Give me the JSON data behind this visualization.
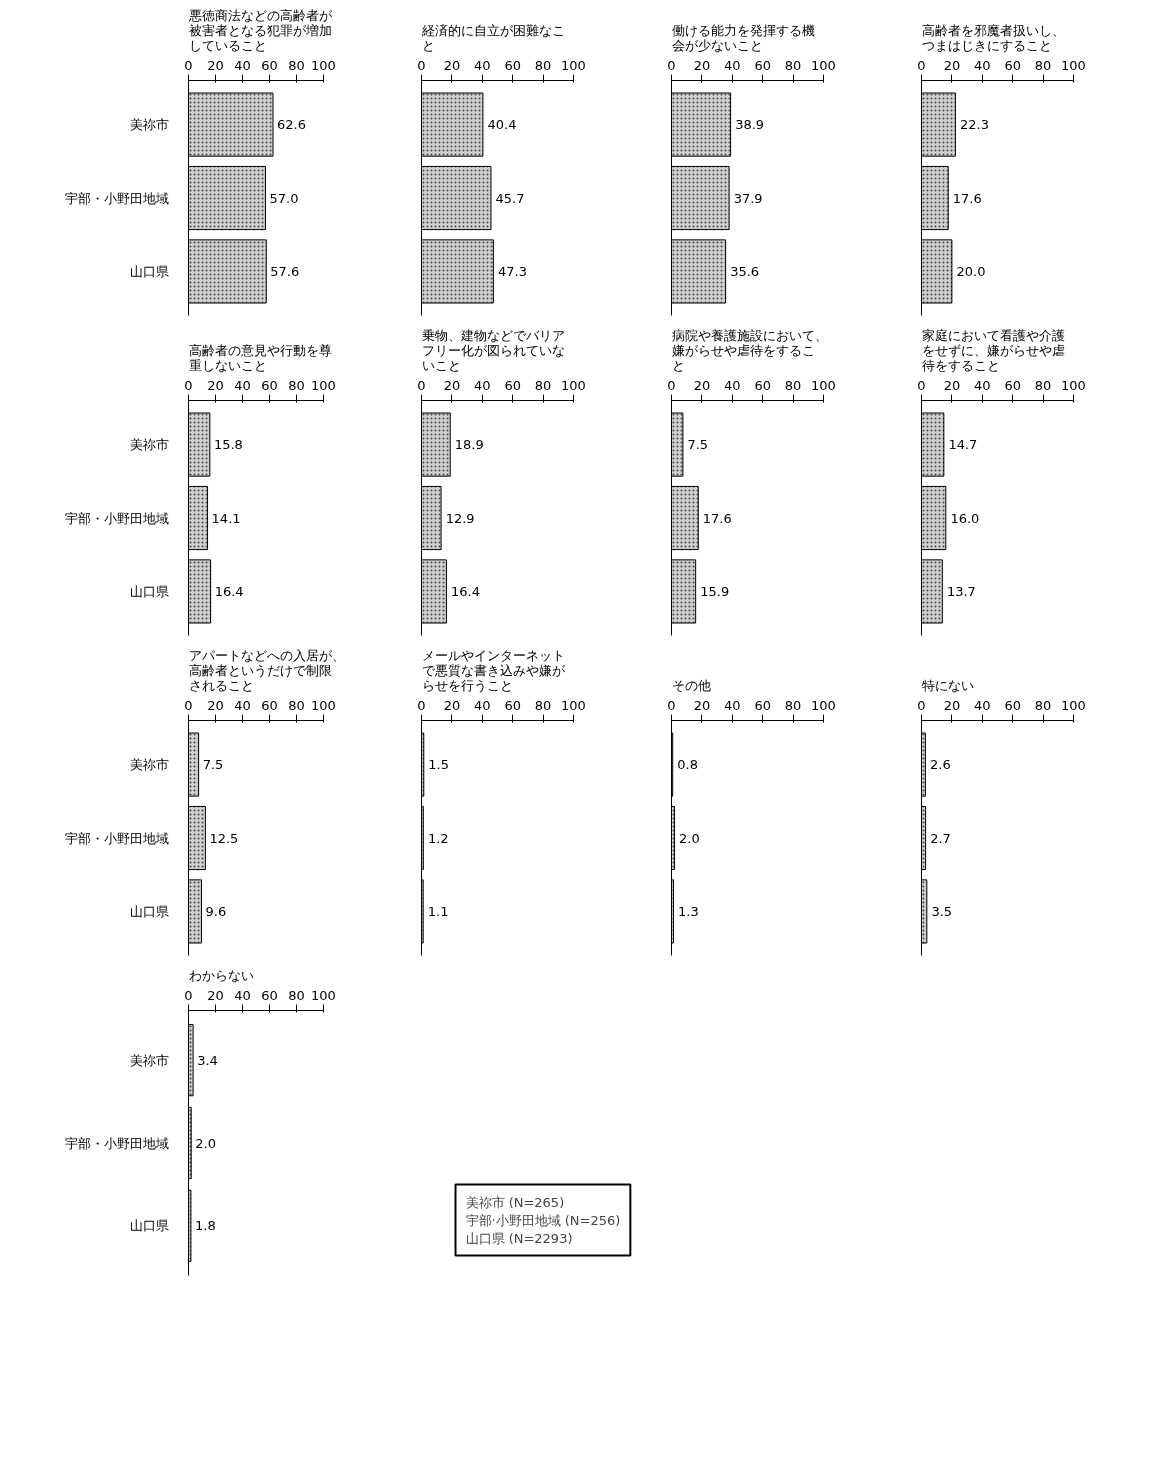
{
  "chart_data": [
    {
      "type": "bar",
      "orientation": "horizontal",
      "title": "悪徳商法などの高齢者が被害者となる犯罪が増加していること",
      "categories": [
        "美祢市",
        "宇部・小野田地域",
        "山口県"
      ],
      "values": [
        62.6,
        57.0,
        57.6
      ],
      "value_labels": [
        "62.6",
        "57.0",
        "57.6"
      ],
      "color": "#d0d0d0",
      "xlim": [
        0,
        100
      ],
      "xticks": [
        0,
        20,
        40,
        60,
        80,
        100
      ],
      "grid": false
    },
    {
      "type": "bar",
      "orientation": "horizontal",
      "title": "経済的に自立が困難なこと",
      "categories": [
        "美祢市",
        "宇部・小野田地域",
        "山口県"
      ],
      "values": [
        40.4,
        45.7,
        47.3
      ],
      "value_labels": [
        "40.4",
        "45.7",
        "47.3"
      ],
      "color": "#d0d0d0",
      "xlim": [
        0,
        100
      ],
      "xticks": [
        0,
        20,
        40,
        60,
        80,
        100
      ],
      "tick_labels": "x",
      "grid": false
    },
    {
      "type": "bar",
      "orientation": "horizontal",
      "title": "働ける能力を発揮する機会が少ないこと",
      "categories": [
        "美祢市",
        "宇部・小野田地域",
        "山口県"
      ],
      "values": [
        38.9,
        37.9,
        35.6
      ],
      "value_labels": [
        "38.9",
        "37.9",
        "35.6"
      ],
      "color": "#d0d0d0",
      "xlim": [
        0,
        100
      ],
      "xticks": [
        0,
        20,
        40,
        60,
        80,
        100
      ],
      "tick_labels": "x",
      "grid": false
    },
    {
      "type": "bar",
      "orientation": "horizontal",
      "title": "高齢者を邪魔者扱いし、つまはじきにすること",
      "categories": [
        "美祢市",
        "宇部・小野田地域",
        "山口県"
      ],
      "values": [
        22.3,
        17.6,
        20.0
      ],
      "value_labels": [
        "22.3",
        "17.6",
        "20.0"
      ],
      "color": "#d0d0d0",
      "xlim": [
        0,
        100
      ],
      "xticks": [
        0,
        20,
        40,
        60,
        80,
        100
      ],
      "tick_labels": "x",
      "grid": false
    },
    {
      "type": "bar",
      "orientation": "horizontal",
      "title": "高齢者の意見や行動を尊重しないこと",
      "categories": [
        "美祢市",
        "宇部・小野田地域",
        "山口県"
      ],
      "values": [
        15.8,
        14.1,
        16.4
      ],
      "value_labels": [
        "15.8",
        "14.1",
        "16.4"
      ],
      "color": "#d0d0d0",
      "xlim": [
        0,
        100
      ],
      "xticks": [
        0,
        20,
        40,
        60,
        80,
        100
      ],
      "grid": false
    },
    {
      "type": "bar",
      "orientation": "horizontal",
      "title": "乗物、建物などでバリアフリー化が図られていないこと",
      "categories": [
        "美祢市",
        "宇部・小野田地域",
        "山口県"
      ],
      "values": [
        18.9,
        12.9,
        16.4
      ],
      "value_labels": [
        "18.9",
        "12.9",
        "16.4"
      ],
      "color": "#d0d0d0",
      "xlim": [
        0,
        100
      ],
      "xticks": [
        0,
        20,
        40,
        60,
        80,
        100
      ],
      "tick_labels": "x",
      "grid": false
    },
    {
      "type": "bar",
      "orientation": "horizontal",
      "title": "病院や養護施設において、嫌がらせや虐待をすること",
      "categories": [
        "美祢市",
        "宇部・小野田地域",
        "山口県"
      ],
      "values": [
        7.5,
        17.6,
        15.9
      ],
      "value_labels": [
        "7.5",
        "17.6",
        "15.9"
      ],
      "color": "#d0d0d0",
      "xlim": [
        0,
        100
      ],
      "xticks": [
        0,
        20,
        40,
        60,
        80,
        100
      ],
      "tick_labels": "x",
      "grid": false
    },
    {
      "type": "bar",
      "orientation": "horizontal",
      "title": "家庭において看護や介護をせずに、嫌がらせや虐待をすること",
      "categories": [
        "美祢市",
        "宇部・小野田地域",
        "山口県"
      ],
      "values": [
        14.7,
        16.0,
        13.7
      ],
      "value_labels": [
        "14.7",
        "16.0",
        "13.7"
      ],
      "color": "#d0d0d0",
      "xlim": [
        0,
        100
      ],
      "xticks": [
        0,
        20,
        40,
        60,
        80,
        100
      ],
      "tick_labels": "x",
      "grid": false
    },
    {
      "type": "bar",
      "orientation": "horizontal",
      "title": "アパートなどへの入居が、高齢者というだけで制限されること",
      "categories": [
        "美祢市",
        "宇部・小野田地域",
        "山口県"
      ],
      "values": [
        7.5,
        12.5,
        9.6
      ],
      "value_labels": [
        "7.5",
        "12.5",
        "9.6"
      ],
      "color": "#d0d0d0",
      "xlim": [
        0,
        100
      ],
      "xticks": [
        0,
        20,
        40,
        60,
        80,
        100
      ],
      "grid": false
    },
    {
      "type": "bar",
      "orientation": "horizontal",
      "title": "メールやインターネットで悪質な書き込みや嫌がらせを行うこと",
      "categories": [
        "美祢市",
        "宇部・小野田地域",
        "山口県"
      ],
      "values": [
        1.5,
        1.2,
        1.1
      ],
      "value_labels": [
        "1.5",
        "1.2",
        "1.1"
      ],
      "color": "#d0d0d0",
      "xlim": [
        0,
        100
      ],
      "xticks": [
        0,
        20,
        40,
        60,
        80,
        100
      ],
      "tick_labels": "x",
      "grid": false
    },
    {
      "type": "bar",
      "orientation": "horizontal",
      "title": "その他",
      "categories": [
        "美祢市",
        "宇部・小野田地域",
        "山口県"
      ],
      "values": [
        0.8,
        2.0,
        1.3
      ],
      "value_labels": [
        "0.8",
        "2.0",
        "1.3"
      ],
      "color": "#d0d0d0",
      "xlim": [
        0,
        100
      ],
      "xticks": [
        0,
        20,
        40,
        60,
        80,
        100
      ],
      "tick_labels": "x",
      "grid": false
    },
    {
      "type": "bar",
      "orientation": "horizontal",
      "title": "特にない",
      "categories": [
        "美祢市",
        "宇部・小野田地域",
        "山口県"
      ],
      "values": [
        2.6,
        2.7,
        3.5
      ],
      "value_labels": [
        "2.6",
        "2.7",
        "3.5"
      ],
      "color": "#d0d0d0",
      "xlim": [
        0,
        100
      ],
      "xticks": [
        0,
        20,
        40,
        60,
        80,
        100
      ],
      "tick_labels": "x",
      "grid": false
    },
    {
      "type": "bar",
      "orientation": "horizontal",
      "title": "わからない",
      "categories": [
        "美祢市",
        "宇部・小野田地域",
        "山口県"
      ],
      "values": [
        3.4,
        2.0,
        1.8
      ],
      "value_labels": [
        "3.4",
        "2.0",
        "1.8"
      ],
      "color": "#d0d0d0",
      "xlim": [
        0,
        100
      ],
      "xticks": [
        0,
        20,
        40,
        60,
        80,
        100
      ],
      "grid": false,
      "annotations": [
        "美祢市          (N=265)",
        "宇部·小野田地域 (N=256)",
        "山口県         (N=2293)"
      ]
    }
  ]
}
